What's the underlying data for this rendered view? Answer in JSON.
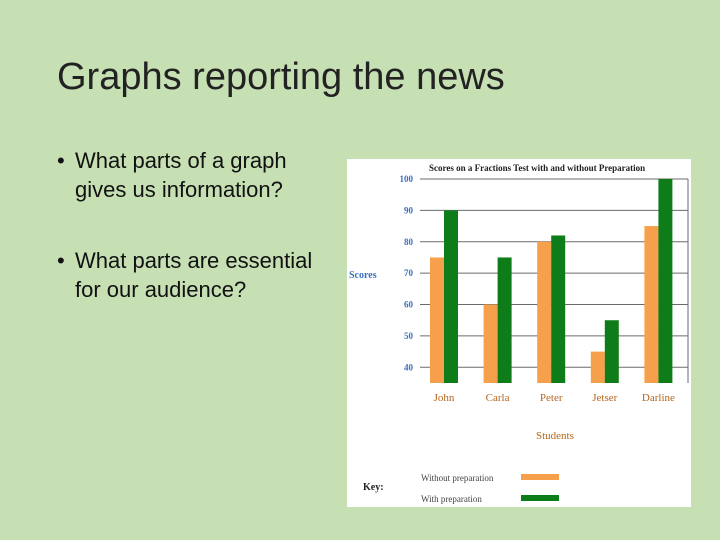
{
  "slide": {
    "title": "Graphs reporting the news",
    "bullets": [
      "What parts of a graph gives us information?",
      "What parts are essential for our audience?"
    ]
  },
  "chart_data": {
    "type": "bar",
    "title": "Scores on a Fractions Test with and without Preparation",
    "xlabel": "Students",
    "ylabel": "Scores",
    "categories": [
      "John",
      "Carla",
      "Peter",
      "Jetser",
      "Darline"
    ],
    "yticks": [
      40,
      50,
      60,
      70,
      80,
      90,
      100
    ],
    "ylim": [
      35,
      100
    ],
    "grid": true,
    "series": [
      {
        "name": "Without preparation",
        "color": "#f7a04b",
        "values": [
          75,
          60,
          80,
          45,
          85
        ]
      },
      {
        "name": "With preparation",
        "color": "#0e7c19",
        "values": [
          90,
          75,
          82,
          55,
          100
        ]
      }
    ],
    "legend": {
      "title": "Key:",
      "placement": "bottom"
    }
  }
}
